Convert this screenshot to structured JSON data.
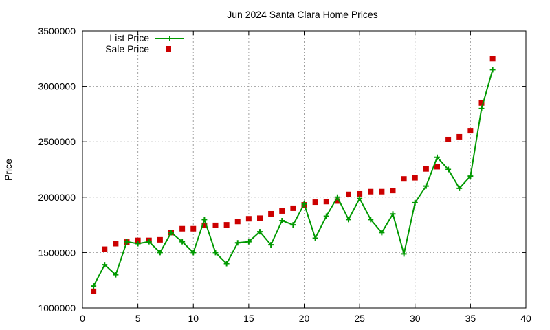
{
  "chart_data": {
    "type": "line",
    "title": "Jun 2024 Santa Clara Home Prices",
    "xlabel": "",
    "ylabel": "Price",
    "xlim": [
      0,
      40
    ],
    "ylim": [
      1000000,
      3500000
    ],
    "xticks": [
      "0",
      "5",
      "10",
      "15",
      "20",
      "25",
      "30",
      "35",
      "40"
    ],
    "yticks": [
      "1000000",
      "1500000",
      "2000000",
      "2500000",
      "3000000",
      "3500000"
    ],
    "grid": true,
    "legend_position": "top-left",
    "series": [
      {
        "name": "List Price",
        "style": "line-with-plus-markers",
        "color": "#009900",
        "x": [
          1,
          2,
          3,
          4,
          5,
          6,
          7,
          8,
          9,
          10,
          11,
          12,
          13,
          14,
          15,
          16,
          17,
          18,
          19,
          20,
          21,
          22,
          23,
          24,
          25,
          26,
          27,
          28,
          29,
          30,
          31,
          32,
          33,
          34,
          35,
          36,
          37
        ],
        "values": [
          1198000,
          1390000,
          1300000,
          1598000,
          1580000,
          1598000,
          1500000,
          1680000,
          1598000,
          1500000,
          1798000,
          1500000,
          1400000,
          1588000,
          1598000,
          1688000,
          1570000,
          1788000,
          1750000,
          1938000,
          1630000,
          1828000,
          2000000,
          1798000,
          1988000,
          1798000,
          1680000,
          1848000,
          1488000,
          1950000,
          2100000,
          2360000,
          2250000,
          2080000,
          2190000,
          2800000,
          3150000
        ]
      },
      {
        "name": "Sale Price",
        "style": "square-markers",
        "color": "#cc0000",
        "x": [
          1,
          2,
          3,
          4,
          5,
          6,
          7,
          8,
          9,
          10,
          11,
          12,
          13,
          14,
          15,
          16,
          17,
          18,
          19,
          20,
          21,
          22,
          23,
          24,
          25,
          26,
          27,
          28,
          29,
          30,
          31,
          32,
          33,
          34,
          35,
          36,
          37
        ],
        "values": [
          1150000,
          1530000,
          1580000,
          1595000,
          1610000,
          1610000,
          1615000,
          1680000,
          1715000,
          1715000,
          1745000,
          1745000,
          1750000,
          1780000,
          1805000,
          1810000,
          1850000,
          1875000,
          1900000,
          1930000,
          1955000,
          1960000,
          1965000,
          2025000,
          2030000,
          2050000,
          2050000,
          2060000,
          2165000,
          2175000,
          2255000,
          2275000,
          2520000,
          2545000,
          2600000,
          2850000,
          3250000
        ]
      }
    ]
  }
}
